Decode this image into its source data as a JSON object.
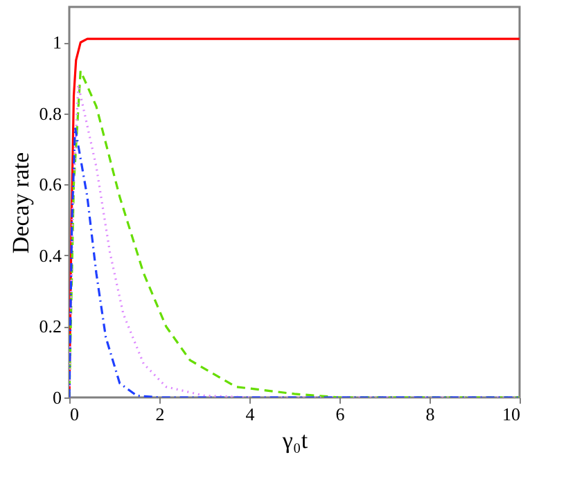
{
  "chart_data": {
    "type": "line",
    "xlabel": "γ₀t",
    "ylabel": "Decay rate",
    "xlim": [
      0,
      10
    ],
    "xticks": [
      0,
      2,
      4,
      6,
      8,
      10
    ],
    "ylim": [
      0,
      1.1
    ],
    "yticks": [
      0,
      0.2,
      0.4,
      0.6,
      0.8,
      1
    ],
    "grid": false,
    "marker": "none",
    "series": [
      {
        "color": "#ff0000",
        "line_style": "solid",
        "x": [
          0,
          0.05,
          0.1,
          0.15,
          0.25,
          0.4,
          0.6,
          2,
          4,
          6,
          8,
          10
        ],
        "values": [
          0,
          0.5,
          0.85,
          0.95,
          1.0,
          1.01,
          1.01,
          1.01,
          1.01,
          1.01,
          1.01,
          1.01
        ]
      },
      {
        "color": "#66dd00",
        "line_style": "dashed",
        "x": [
          0,
          0.1,
          0.25,
          0.6,
          1.12,
          1.65,
          2.15,
          2.68,
          3.7,
          5,
          6,
          8,
          10
        ],
        "values": [
          0,
          0.6,
          0.92,
          0.82,
          0.565,
          0.35,
          0.2,
          0.105,
          0.03,
          0.01,
          0,
          0,
          0
        ]
      },
      {
        "color": "#dd88ff",
        "line_style": "dotted",
        "x": [
          0,
          0.08,
          0.2,
          0.6,
          0.9,
          1.2,
          1.65,
          2.15,
          3,
          4,
          6,
          8,
          10
        ],
        "values": [
          0,
          0.55,
          0.88,
          0.65,
          0.41,
          0.235,
          0.095,
          0.03,
          0.005,
          0,
          0,
          0,
          0
        ]
      },
      {
        "color": "#1f3fff",
        "line_style": "dashdot",
        "x": [
          0,
          0.06,
          0.13,
          0.4,
          0.6,
          0.81,
          1.12,
          1.5,
          2,
          4,
          6,
          8,
          10
        ],
        "values": [
          0,
          0.5,
          0.76,
          0.565,
          0.35,
          0.17,
          0.04,
          0.005,
          0,
          0,
          0,
          0,
          0
        ]
      }
    ]
  }
}
